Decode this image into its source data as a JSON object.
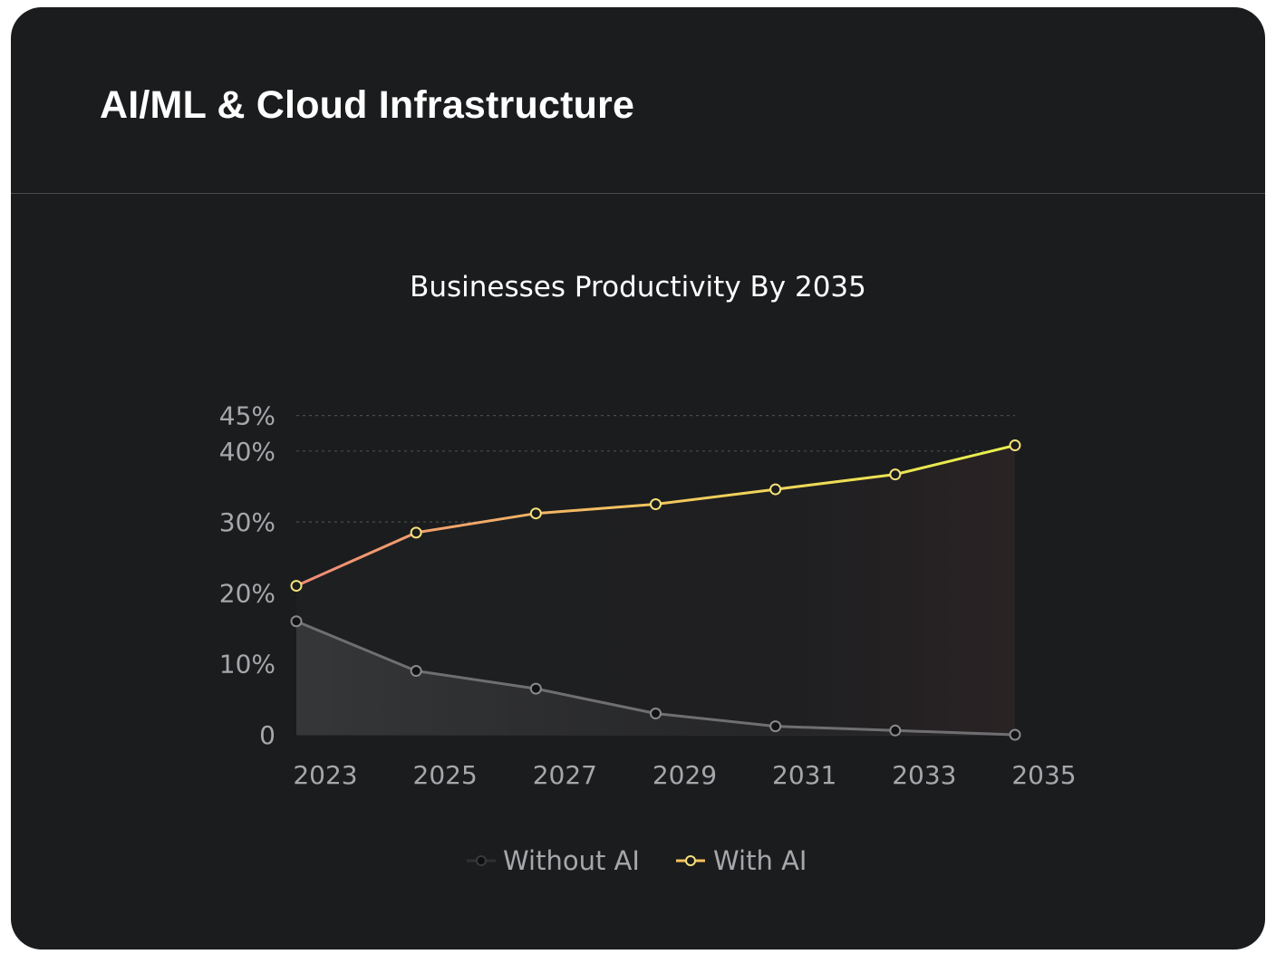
{
  "card": {
    "title": "AI/ML & Cloud Infrastructure"
  },
  "chart_data": {
    "type": "line",
    "title": "Businesses Productivity By 2035",
    "categories": [
      "2023",
      "2025",
      "2027",
      "2029",
      "2031",
      "2033",
      "2035"
    ],
    "y_ticks": [
      {
        "value": 0,
        "label": "0"
      },
      {
        "value": 10,
        "label": "10%"
      },
      {
        "value": 20,
        "label": "20%"
      },
      {
        "value": 30,
        "label": "30%"
      },
      {
        "value": 40,
        "label": "40%"
      },
      {
        "value": 45,
        "label": "45%"
      }
    ],
    "series": [
      {
        "name": "Without AI",
        "values": [
          16,
          9,
          6.5,
          3,
          1.2,
          0.6,
          0
        ],
        "line_color": "#6f6f72",
        "marker_fill": "#121213",
        "marker_stroke": "#8a8a8d",
        "area_color": "#3a3b3d"
      },
      {
        "name": "With AI",
        "values": [
          21,
          28.5,
          31.2,
          32.5,
          34.6,
          36.7,
          40.8
        ],
        "gradient_start": "#f08a76",
        "gradient_mid": "#f4c25f",
        "gradient_end": "#e8f24c",
        "marker_stroke": "#f5e27a",
        "marker_fill": "#1b1c1e"
      }
    ],
    "legend": {
      "position": "bottom-center",
      "items": [
        "Without AI",
        "With AI"
      ]
    },
    "grid": true
  }
}
